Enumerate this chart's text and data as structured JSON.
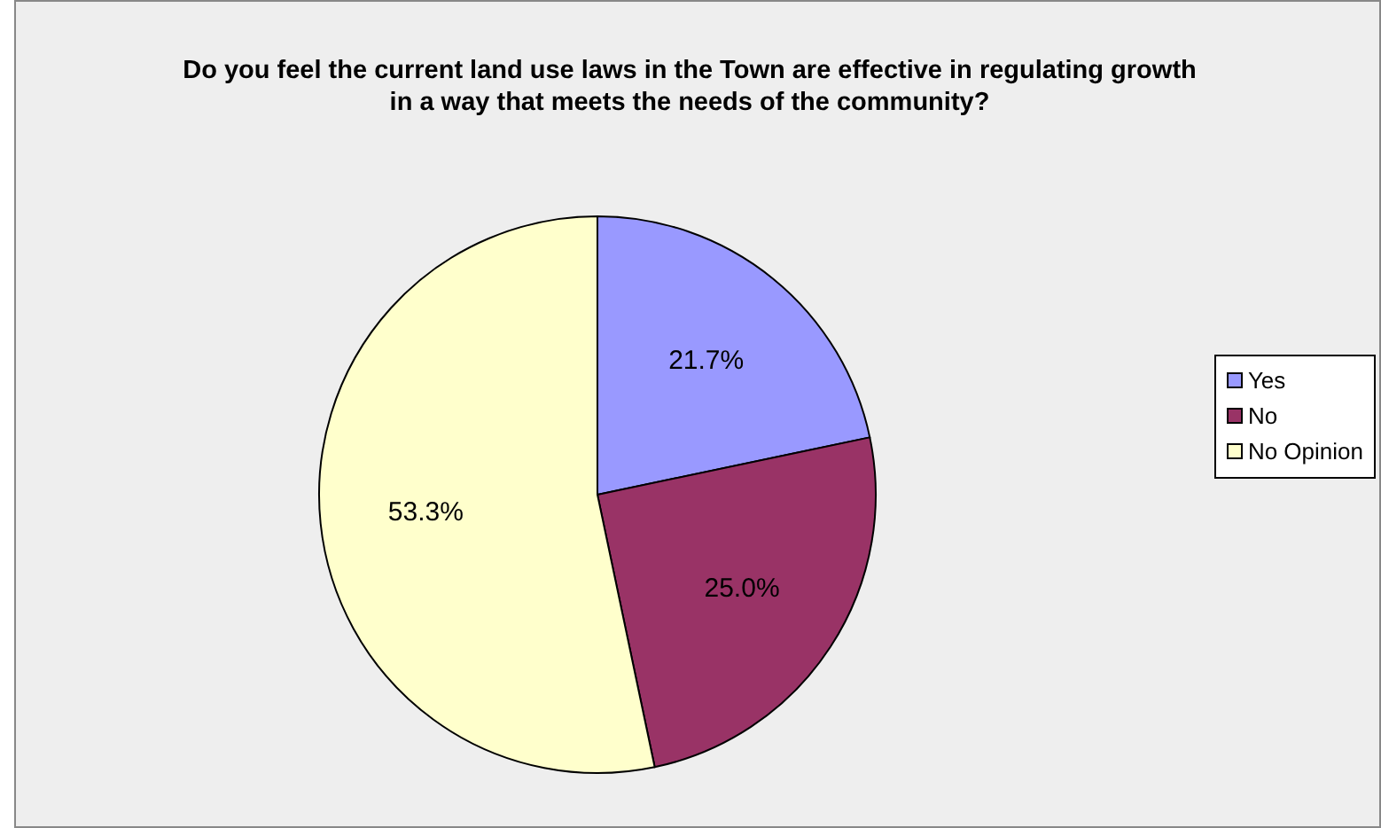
{
  "chart_data": {
    "type": "pie",
    "title": "Do you feel the current land use laws in the Town are effective in regulating growth in a way that meets the needs of the community?",
    "categories": [
      "Yes",
      "No",
      "No Opinion"
    ],
    "values": [
      21.7,
      25.0,
      53.3
    ],
    "colors": [
      "#9999ff",
      "#993366",
      "#ffffcc"
    ],
    "value_labels": [
      "21.7%",
      "25.0%",
      "53.3%"
    ],
    "legend": "right"
  }
}
